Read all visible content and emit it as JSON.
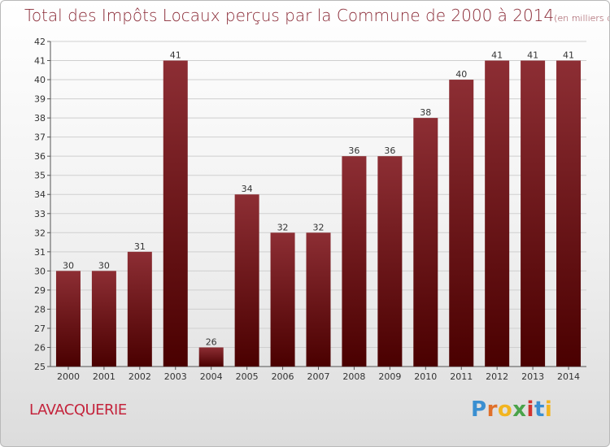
{
  "title": {
    "main": "Total des Impôts Locaux perçus par la Commune de 2000 à 2014",
    "unit": "(en milliers d'€)"
  },
  "commune": "LAVACQUERIE",
  "logo": {
    "text": "Proxiti",
    "letters": [
      {
        "ch": "P",
        "color": "#3a8fd1"
      },
      {
        "ch": "r",
        "color": "#e0702a"
      },
      {
        "ch": "o",
        "color": "#f2b520"
      },
      {
        "ch": "x",
        "color": "#4aa34a"
      },
      {
        "ch": "i",
        "color": "#d2342f"
      },
      {
        "ch": "t",
        "color": "#3a8fd1"
      },
      {
        "ch": "i",
        "color": "#f2b520"
      }
    ]
  },
  "colors": {
    "bar_top": "#8d2e34",
    "bar_bottom": "#4a0000",
    "grid": "#cfcfcf",
    "axis": "#555555"
  },
  "chart_data": {
    "type": "bar",
    "title": "Total des Impôts Locaux perçus par la Commune de 2000 à 2014",
    "xlabel": "",
    "ylabel": "",
    "categories": [
      "2000",
      "2001",
      "2002",
      "2003",
      "2004",
      "2005",
      "2006",
      "2007",
      "2008",
      "2009",
      "2010",
      "2011",
      "2012",
      "2013",
      "2014"
    ],
    "values": [
      30,
      30,
      31,
      41,
      26,
      34,
      32,
      32,
      36,
      36,
      38,
      40,
      41,
      41,
      41
    ],
    "ylim": [
      25,
      42
    ],
    "yticks": [
      25,
      26,
      27,
      28,
      29,
      30,
      31,
      32,
      33,
      34,
      35,
      36,
      37,
      38,
      39,
      40,
      41,
      42
    ],
    "grid": "horizontal"
  }
}
